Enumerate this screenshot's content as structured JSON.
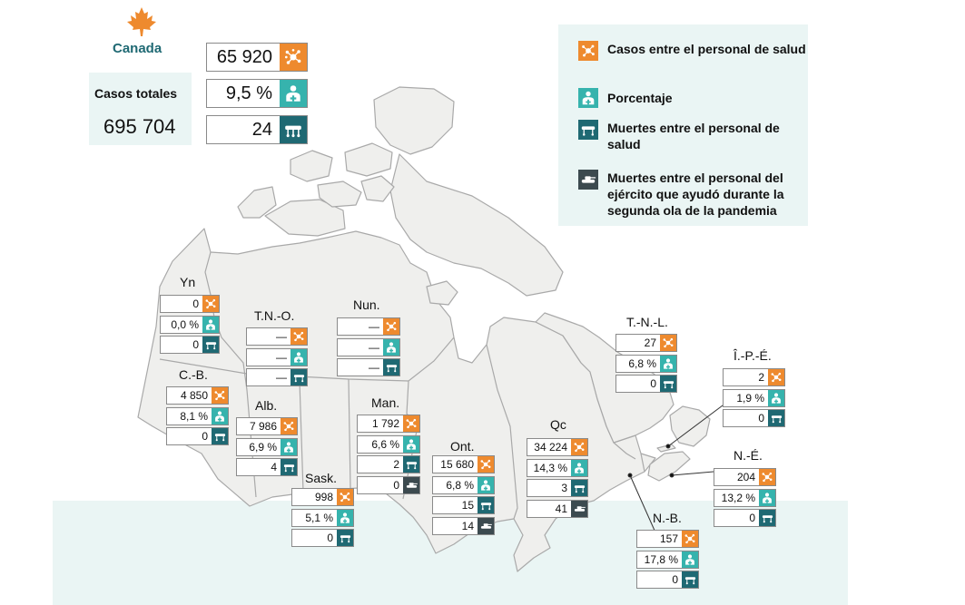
{
  "country": {
    "name": "Canada",
    "total_label": "Casos totales",
    "total_value": "695 704",
    "health_cases": "65 920",
    "percent": "9,5 %",
    "health_deaths": "24"
  },
  "legend": {
    "health_cases": "Casos entre el personal de salud",
    "percent": "Porcentaje",
    "health_deaths": "Muertes entre el personal de salud",
    "army_deaths": "Muertes entre el personal del ejército que ayudó durante la segunda ola de la pandemia"
  },
  "colors": {
    "cases": "#ee8a2e",
    "percent": "#36b3ad",
    "deaths": "#1f6973",
    "army": "#3c4a4f",
    "land": "#efefed",
    "border": "#a9a9a9",
    "band": "#eaf5f4"
  },
  "icons": {
    "cases": "virus-icon",
    "percent": "health-worker-icon",
    "deaths": "stretcher-icon",
    "army": "tank-icon"
  },
  "regions": {
    "yn": {
      "label": "Yn",
      "cases": "0",
      "percent": "0,0 %",
      "deaths": "0"
    },
    "tno": {
      "label": "T.N.-O.",
      "cases": "—",
      "percent": "—",
      "deaths": "—"
    },
    "nun": {
      "label": "Nun.",
      "cases": "—",
      "percent": "—",
      "deaths": "—"
    },
    "cb": {
      "label": "C.-B.",
      "cases": "4 850",
      "percent": "8,1 %",
      "deaths": "0"
    },
    "alb": {
      "label": "Alb.",
      "cases": "7 986",
      "percent": "6,9 %",
      "deaths": "4"
    },
    "sask": {
      "label": "Sask.",
      "cases": "998",
      "percent": "5,1 %",
      "deaths": "0"
    },
    "man": {
      "label": "Man.",
      "cases": "1 792",
      "percent": "6,6 %",
      "deaths": "2",
      "army": "0"
    },
    "ont": {
      "label": "Ont.",
      "cases": "15 680",
      "percent": "6,8 %",
      "deaths": "15",
      "army": "14"
    },
    "qc": {
      "label": "Qc",
      "cases": "34 224",
      "percent": "14,3 %",
      "deaths": "3",
      "army": "41"
    },
    "tnl": {
      "label": "T.-N.-L.",
      "cases": "27",
      "percent": "6,8 %",
      "deaths": "0"
    },
    "ipe": {
      "label": "Î.-P.-É.",
      "cases": "2",
      "percent": "1,9 %",
      "deaths": "0"
    },
    "ne": {
      "label": "N.-É.",
      "cases": "204",
      "percent": "13,2 %",
      "deaths": "0"
    },
    "nb": {
      "label": "N.-B.",
      "cases": "157",
      "percent": "17,8 %",
      "deaths": "0"
    }
  }
}
